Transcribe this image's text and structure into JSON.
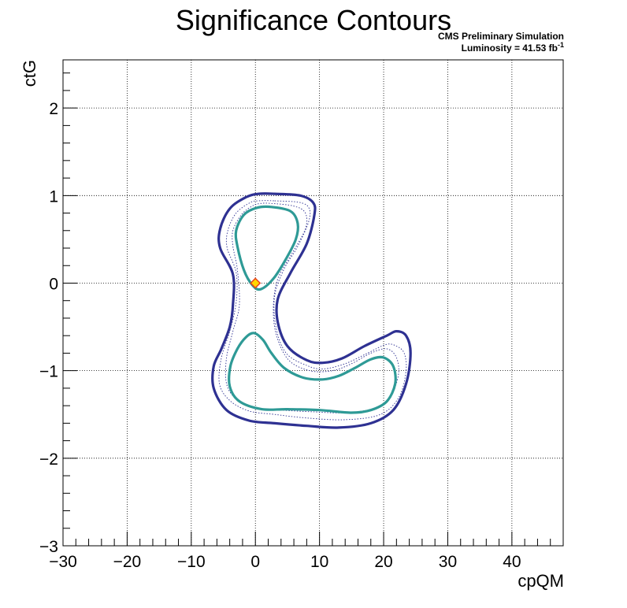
{
  "chart_data": {
    "type": "contour",
    "title": "Significance Contours",
    "annotations": {
      "line1": "CMS Preliminary Simulation",
      "line2_prefix": "Luminosity = 41.53 fb",
      "line2_superscript": "-1"
    },
    "xlabel": "cpQM",
    "ylabel": "ctG",
    "xlim": [
      -30,
      48
    ],
    "ylim": [
      -3,
      2.55
    ],
    "x_ticks": [
      -30,
      -20,
      -10,
      0,
      10,
      20,
      30,
      40
    ],
    "x_tick_labels": [
      "−30",
      "−20",
      "−10",
      "0",
      "10",
      "20",
      "30",
      "40"
    ],
    "y_ticks": [
      -3,
      -2,
      -1,
      0,
      1,
      2
    ],
    "y_tick_labels": [
      "−3",
      "−2",
      "−1",
      "0",
      "1",
      "2"
    ],
    "grid": true,
    "colors": {
      "outer": "#2e3192",
      "inner": "#2e9a96",
      "marker_fill": "#ffd700",
      "marker_edge": "#e8421c"
    },
    "best_fit": {
      "x": 0,
      "y": 0
    },
    "contours": [
      {
        "level": "outer",
        "style": "solid",
        "points": [
          [
            3,
            1.02
          ],
          [
            7,
            1.0
          ],
          [
            9,
            0.92
          ],
          [
            9.2,
            0.78
          ],
          [
            8,
            0.45
          ],
          [
            5.5,
            0.12
          ],
          [
            3.5,
            -0.18
          ],
          [
            3.5,
            -0.45
          ],
          [
            5,
            -0.72
          ],
          [
            8,
            -0.88
          ],
          [
            10.5,
            -0.91
          ],
          [
            13.5,
            -0.86
          ],
          [
            17,
            -0.72
          ],
          [
            20.5,
            -0.6
          ],
          [
            22,
            -0.55
          ],
          [
            23.5,
            -0.6
          ],
          [
            24.2,
            -0.8
          ],
          [
            23.5,
            -1.15
          ],
          [
            21.5,
            -1.45
          ],
          [
            18,
            -1.6
          ],
          [
            13,
            -1.65
          ],
          [
            8,
            -1.63
          ],
          [
            3,
            -1.6
          ],
          [
            -1,
            -1.57
          ],
          [
            -4.5,
            -1.45
          ],
          [
            -6.5,
            -1.2
          ],
          [
            -6.5,
            -0.95
          ],
          [
            -5.3,
            -0.75
          ],
          [
            -4,
            -0.5
          ],
          [
            -3.5,
            -0.25
          ],
          [
            -3.5,
            0.1
          ],
          [
            -5.5,
            0.4
          ],
          [
            -5.5,
            0.62
          ],
          [
            -4,
            0.85
          ],
          [
            -1.5,
            0.98
          ],
          [
            0.5,
            1.02
          ],
          [
            3,
            1.02
          ]
        ]
      },
      {
        "level": "outer-inner-dotted",
        "style": "dotted",
        "points": [
          [
            3,
            0.94
          ],
          [
            7,
            0.92
          ],
          [
            8.4,
            0.85
          ],
          [
            8.3,
            0.7
          ],
          [
            6.6,
            0.42
          ],
          [
            4.4,
            0.15
          ],
          [
            3,
            -0.15
          ],
          [
            3.2,
            -0.5
          ],
          [
            4.8,
            -0.8
          ],
          [
            8,
            -0.94
          ],
          [
            10.6,
            -0.98
          ],
          [
            14,
            -0.92
          ],
          [
            17.5,
            -0.8
          ],
          [
            20.4,
            -0.7
          ],
          [
            22,
            -0.72
          ],
          [
            23.2,
            -0.8
          ],
          [
            23.5,
            -1.0
          ],
          [
            22.4,
            -1.3
          ],
          [
            19.5,
            -1.5
          ],
          [
            14,
            -1.56
          ],
          [
            8,
            -1.54
          ],
          [
            3,
            -1.5
          ],
          [
            -1,
            -1.46
          ],
          [
            -4,
            -1.34
          ],
          [
            -5.6,
            -1.15
          ],
          [
            -5.3,
            -0.85
          ],
          [
            -4,
            -0.55
          ],
          [
            -3,
            -0.22
          ],
          [
            -3,
            0.12
          ],
          [
            -4.4,
            0.4
          ],
          [
            -4.3,
            0.6
          ],
          [
            -3,
            0.8
          ],
          [
            -0.8,
            0.92
          ],
          [
            0.5,
            0.94
          ],
          [
            3,
            0.94
          ]
        ]
      },
      {
        "level": "inner-outer-dotted",
        "style": "dotted",
        "points": [
          [
            2.5,
            0.91
          ],
          [
            6,
            0.88
          ],
          [
            7.8,
            0.8
          ],
          [
            7.8,
            0.62
          ],
          [
            5.8,
            0.35
          ],
          [
            3.5,
            0.05
          ],
          [
            2.8,
            -0.28
          ],
          [
            3.3,
            -0.6
          ],
          [
            5.2,
            -0.88
          ],
          [
            8.5,
            -1.0
          ],
          [
            12,
            -1.0
          ],
          [
            15,
            -0.92
          ],
          [
            18,
            -0.8
          ],
          [
            20.5,
            -0.75
          ],
          [
            22,
            -0.85
          ],
          [
            22.3,
            -1.05
          ],
          [
            21,
            -1.3
          ],
          [
            18.5,
            -1.43
          ],
          [
            14,
            -1.48
          ],
          [
            9,
            -1.47
          ],
          [
            4,
            -1.45
          ],
          [
            0,
            -1.42
          ],
          [
            -3,
            -1.32
          ],
          [
            -4.5,
            -1.15
          ],
          [
            -4.5,
            -0.85
          ],
          [
            -3.5,
            -0.55
          ],
          [
            -2.5,
            -0.25
          ],
          [
            -2.8,
            0.15
          ],
          [
            -3.5,
            0.42
          ],
          [
            -3.5,
            0.6
          ],
          [
            -2.2,
            0.78
          ],
          [
            -0.5,
            0.88
          ],
          [
            0.8,
            0.91
          ],
          [
            2.5,
            0.91
          ]
        ]
      },
      {
        "level": "inner",
        "style": "solid",
        "points": [
          [
            2.5,
            0.87
          ],
          [
            5.5,
            0.82
          ],
          [
            6.6,
            0.68
          ],
          [
            6.3,
            0.5
          ],
          [
            4.8,
            0.28
          ],
          [
            2.8,
            0.05
          ],
          [
            0.8,
            -0.07
          ],
          [
            -0.5,
            -0.02
          ],
          [
            -1.8,
            0.15
          ],
          [
            -2.8,
            0.42
          ],
          [
            -3,
            0.6
          ],
          [
            -1.8,
            0.78
          ],
          [
            0.2,
            0.86
          ],
          [
            2.5,
            0.87
          ]
        ]
      },
      {
        "level": "inner",
        "style": "solid",
        "points": [
          [
            -0.2,
            -0.57
          ],
          [
            1.2,
            -0.65
          ],
          [
            2.5,
            -0.8
          ],
          [
            4.5,
            -0.97
          ],
          [
            7.5,
            -1.08
          ],
          [
            10.5,
            -1.1
          ],
          [
            13,
            -1.06
          ],
          [
            15.5,
            -0.97
          ],
          [
            18,
            -0.87
          ],
          [
            20,
            -0.85
          ],
          [
            21.5,
            -0.95
          ],
          [
            21.8,
            -1.15
          ],
          [
            20.5,
            -1.35
          ],
          [
            18,
            -1.45
          ],
          [
            15,
            -1.48
          ],
          [
            10,
            -1.45
          ],
          [
            5,
            -1.44
          ],
          [
            1,
            -1.44
          ],
          [
            -2.5,
            -1.35
          ],
          [
            -4,
            -1.18
          ],
          [
            -3.9,
            -0.95
          ],
          [
            -2.8,
            -0.75
          ],
          [
            -1.5,
            -0.62
          ],
          [
            -0.2,
            -0.57
          ]
        ]
      }
    ]
  }
}
